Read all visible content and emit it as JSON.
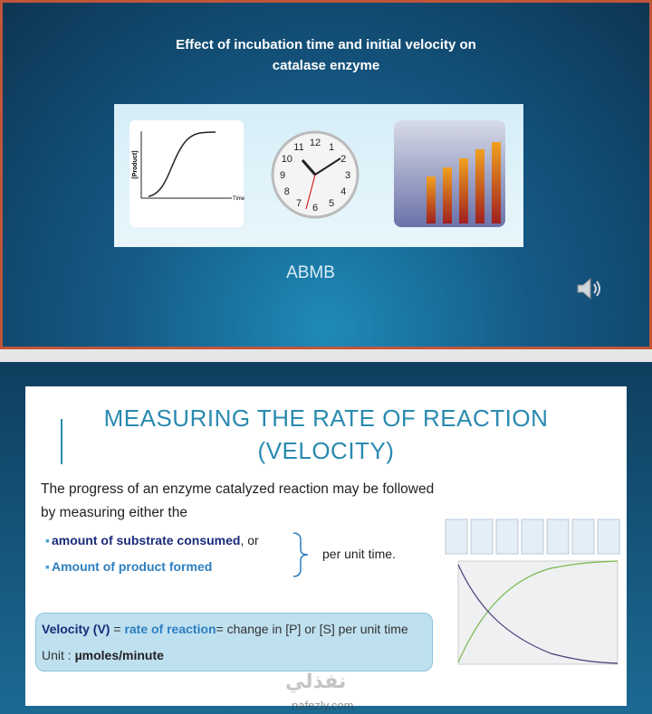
{
  "slide1": {
    "title_lines": [
      "Effect of incubation time  and initial velocity on",
      "catalase enzyme"
    ],
    "graph_labels": {
      "y": "[Product]",
      "x": "Time"
    },
    "clock_numbers": [
      "12",
      "1",
      "2",
      "3",
      "4",
      "5",
      "6",
      "7",
      "8",
      "9",
      "10",
      "11"
    ],
    "author": "ABMB"
  },
  "slide2": {
    "heading_lines": [
      "MEASURING THE RATE OF REACTION",
      "(VELOCITY)"
    ],
    "intro_lines": [
      "The progress of an enzyme catalyzed reaction may be followed",
      "by measuring either the"
    ],
    "bullets": [
      {
        "text": "amount of substrate consumed",
        "suffix": ", or"
      },
      {
        "text": "Amount of product formed"
      }
    ],
    "brace_text": "per unit time.",
    "definition": {
      "term": "Velocity (V)",
      "equals": " = ",
      "rate": "rate of reaction",
      "rest": "= change in [P] or [S] per unit time"
    },
    "unit": {
      "label": "Unit : ",
      "value": "µmoles/minute"
    }
  },
  "watermark": {
    "arabic": "نفذلي",
    "latin": "nafezly.com"
  }
}
